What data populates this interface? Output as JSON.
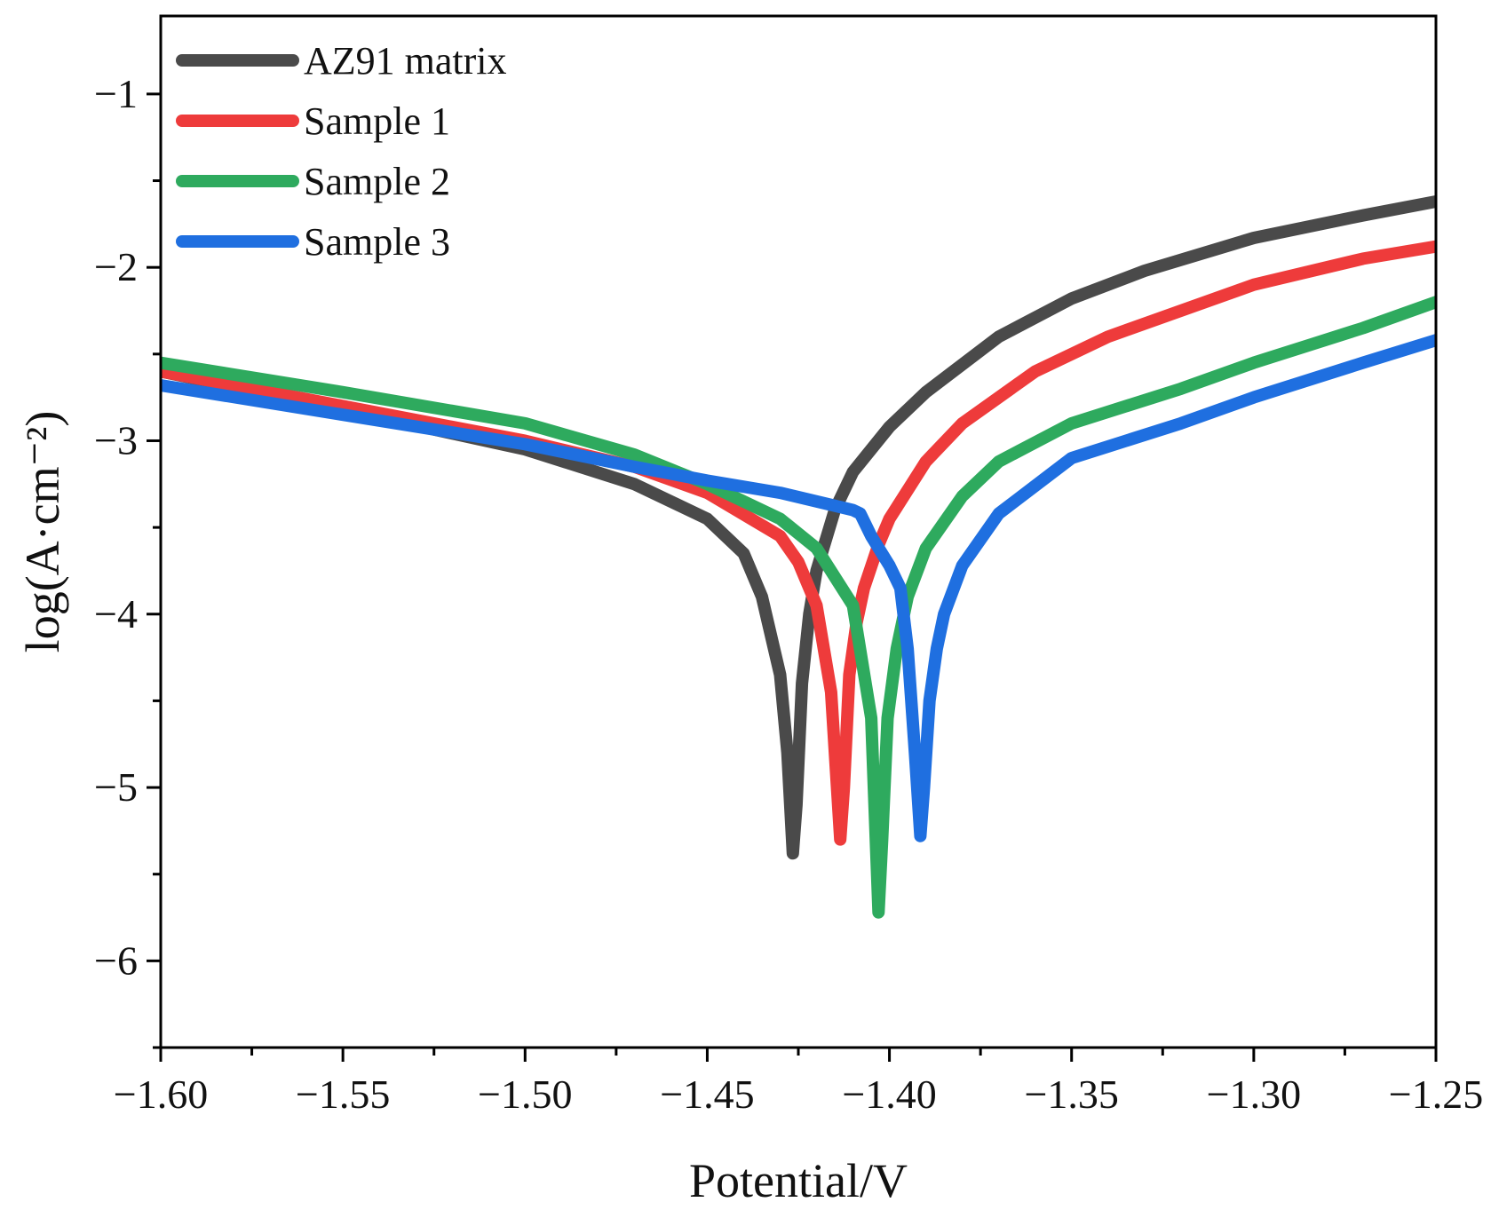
{
  "chart_data": {
    "type": "line",
    "title": "",
    "xlabel": "Potential/V",
    "ylabel": "log(A·cm⁻²)",
    "xlim": [
      -1.6,
      -1.25
    ],
    "ylim": [
      -6.5,
      -0.55
    ],
    "x_ticks": [
      -1.6,
      -1.55,
      -1.5,
      -1.45,
      -1.4,
      -1.35,
      -1.3,
      -1.25
    ],
    "x_tick_labels": [
      "−1.60",
      "−1.55",
      "−1.50",
      "−1.45",
      "−1.40",
      "−1.35",
      "−1.30",
      "−1.25"
    ],
    "y_ticks": [
      -1,
      -2,
      -3,
      -4,
      -5,
      -6
    ],
    "y_tick_labels": [
      "−1",
      "−2",
      "−3",
      "−4",
      "−5",
      "−6"
    ],
    "x_minor_step": 0.025,
    "y_minor_step": 0.5,
    "grid": false,
    "legend_position": "top-left",
    "series": [
      {
        "name": "AZ91 matrix",
        "color": "#4a4a4a",
        "x": [
          -1.6,
          -1.55,
          -1.5,
          -1.47,
          -1.45,
          -1.44,
          -1.435,
          -1.43,
          -1.428,
          -1.4265,
          -1.4255,
          -1.424,
          -1.422,
          -1.42,
          -1.415,
          -1.41,
          -1.4,
          -1.39,
          -1.37,
          -1.35,
          -1.33,
          -1.3,
          -1.27,
          -1.25
        ],
        "y": [
          -2.6,
          -2.82,
          -3.05,
          -3.25,
          -3.45,
          -3.65,
          -3.9,
          -4.35,
          -4.8,
          -5.38,
          -5.1,
          -4.4,
          -4.0,
          -3.75,
          -3.4,
          -3.18,
          -2.92,
          -2.72,
          -2.4,
          -2.18,
          -2.02,
          -1.83,
          -1.7,
          -1.62
        ]
      },
      {
        "name": "Sample 1",
        "color": "#ee3b3b",
        "x": [
          -1.6,
          -1.55,
          -1.5,
          -1.47,
          -1.45,
          -1.43,
          -1.425,
          -1.42,
          -1.416,
          -1.4135,
          -1.4125,
          -1.411,
          -1.409,
          -1.407,
          -1.403,
          -1.4,
          -1.39,
          -1.38,
          -1.36,
          -1.34,
          -1.3,
          -1.27,
          -1.25
        ],
        "y": [
          -2.6,
          -2.8,
          -3.0,
          -3.15,
          -3.3,
          -3.55,
          -3.7,
          -3.95,
          -4.45,
          -5.3,
          -5.0,
          -4.35,
          -4.05,
          -3.85,
          -3.6,
          -3.45,
          -3.12,
          -2.9,
          -2.6,
          -2.4,
          -2.1,
          -1.95,
          -1.88
        ]
      },
      {
        "name": "Sample 2",
        "color": "#2eaa5e",
        "x": [
          -1.6,
          -1.55,
          -1.5,
          -1.47,
          -1.45,
          -1.43,
          -1.42,
          -1.41,
          -1.405,
          -1.403,
          -1.402,
          -1.4005,
          -1.398,
          -1.395,
          -1.39,
          -1.38,
          -1.37,
          -1.35,
          -1.32,
          -1.3,
          -1.27,
          -1.25
        ],
        "y": [
          -2.55,
          -2.72,
          -2.9,
          -3.08,
          -3.25,
          -3.45,
          -3.62,
          -3.95,
          -4.6,
          -5.72,
          -5.3,
          -4.6,
          -4.2,
          -3.9,
          -3.62,
          -3.32,
          -3.12,
          -2.9,
          -2.7,
          -2.55,
          -2.35,
          -2.2
        ]
      },
      {
        "name": "Sample 3",
        "color": "#1f6fe0",
        "x": [
          -1.6,
          -1.55,
          -1.5,
          -1.47,
          -1.45,
          -1.43,
          -1.42,
          -1.41,
          -1.408,
          -1.405,
          -1.4,
          -1.397,
          -1.395,
          -1.393,
          -1.3915,
          -1.3905,
          -1.389,
          -1.387,
          -1.385,
          -1.38,
          -1.37,
          -1.35,
          -1.32,
          -1.3,
          -1.27,
          -1.25
        ],
        "y": [
          -2.68,
          -2.85,
          -3.02,
          -3.15,
          -3.23,
          -3.3,
          -3.35,
          -3.4,
          -3.42,
          -3.55,
          -3.72,
          -3.85,
          -4.2,
          -4.8,
          -5.28,
          -5.0,
          -4.5,
          -4.2,
          -4.0,
          -3.72,
          -3.42,
          -3.1,
          -2.9,
          -2.75,
          -2.55,
          -2.42
        ]
      }
    ]
  }
}
